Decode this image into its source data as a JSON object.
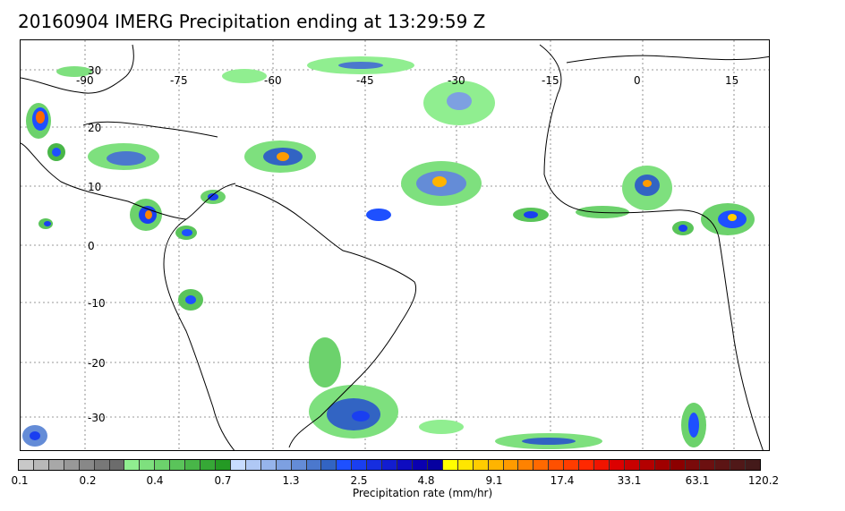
{
  "title": "20160904 IMERG Precipitation ending at 13:29:59 Z",
  "map": {
    "lon_labels": [
      "-90",
      "-75",
      "-60",
      "-45",
      "-30",
      "-15",
      "0",
      "15"
    ],
    "lat_labels": [
      "30",
      "20",
      "10",
      "0",
      "-10",
      "-20",
      "-30"
    ],
    "grid": true
  },
  "colorbar": {
    "colors": [
      "#c8c8c8",
      "#b8b8b8",
      "#a8a8a8",
      "#989898",
      "#888888",
      "#787878",
      "#6c6c6c",
      "#90ee90",
      "#7ee07e",
      "#6cd26c",
      "#5ac45a",
      "#48b648",
      "#36a836",
      "#249a24",
      "#c8dcff",
      "#afc8f5",
      "#96b4eb",
      "#7da0e1",
      "#648cd7",
      "#4b78cd",
      "#3264c3",
      "#1e50ff",
      "#1a3ff0",
      "#162ee0",
      "#121dd0",
      "#0e0cc0",
      "#0a00b0",
      "#0600a0",
      "#ffff00",
      "#ffe600",
      "#ffcd00",
      "#ffb400",
      "#ff9b00",
      "#ff8200",
      "#ff6900",
      "#ff5000",
      "#ff3c00",
      "#ff2800",
      "#f01400",
      "#dc0000",
      "#c80000",
      "#b40000",
      "#a00000",
      "#8c0000",
      "#7a0a0a",
      "#6c1010",
      "#5c1414",
      "#501818",
      "#441a1a"
    ],
    "tick_labels": [
      "0.1",
      "0.2",
      "0.4",
      "0.7",
      "1.3",
      "2.5",
      "4.8",
      "9.1",
      "17.4",
      "33.1",
      "63.1",
      "120.2"
    ],
    "label": "Precipitation rate (mm/hr)"
  }
}
